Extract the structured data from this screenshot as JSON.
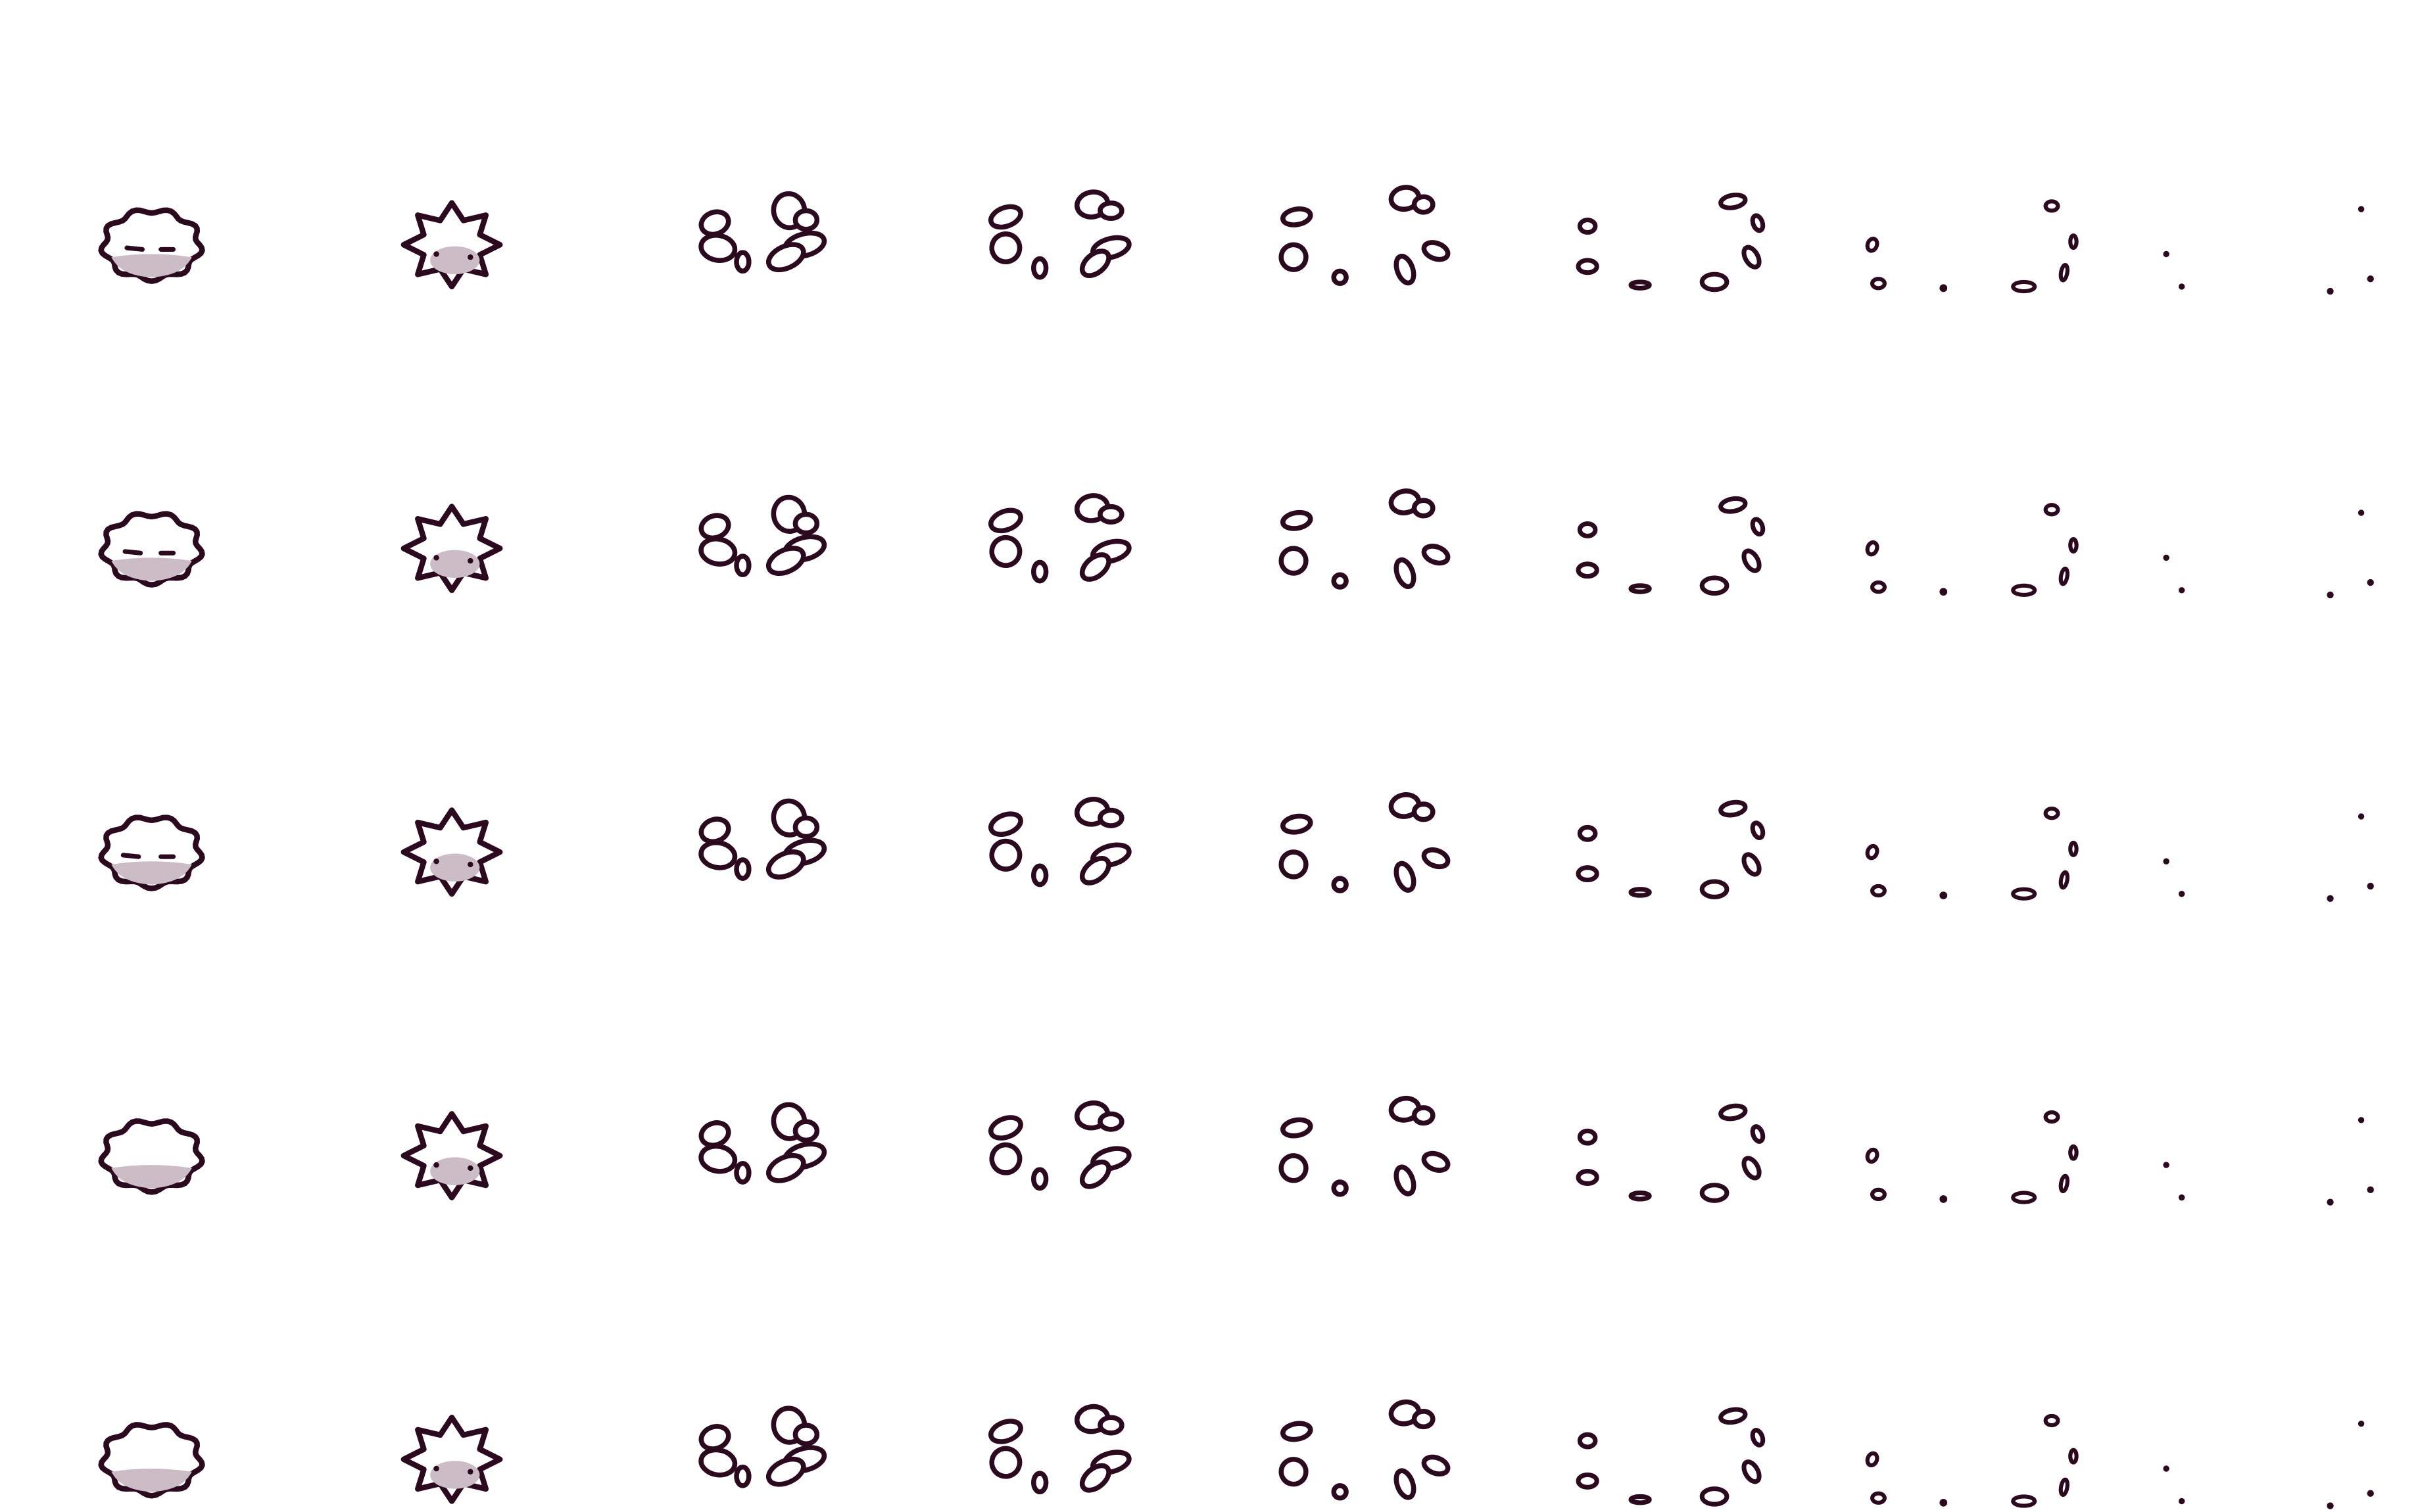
{
  "sprite_sheet": {
    "description_visible_text": "",
    "rows": 5,
    "frames_per_row": 8,
    "outline_color": "#2b0a1f",
    "fill_color": "#ffffff",
    "shade_color": "#cbbcc6",
    "background_color": "#ffffff",
    "frames": [
      {
        "name": "puff",
        "stage": 0
      },
      {
        "name": "burst",
        "stage": 1
      },
      {
        "name": "break-apart",
        "stage": 2
      },
      {
        "name": "scatter",
        "stage": 3
      },
      {
        "name": "scatter-wide",
        "stage": 4
      },
      {
        "name": "fragments",
        "stage": 5
      },
      {
        "name": "dust",
        "stage": 6
      },
      {
        "name": "specks",
        "stage": 7
      }
    ]
  }
}
